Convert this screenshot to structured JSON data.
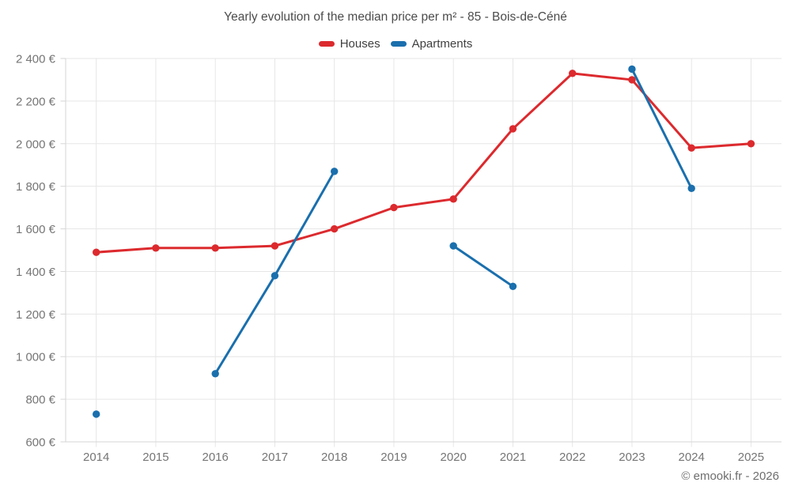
{
  "header": {
    "title": "Yearly evolution of the median price per m² - 85 - Bois-de-Céné"
  },
  "chart_data": {
    "type": "line",
    "title": "Yearly evolution of the median price per m² - 85 - Bois-de-Céné",
    "categories": [
      "2014",
      "2015",
      "2016",
      "2017",
      "2018",
      "2019",
      "2020",
      "2021",
      "2022",
      "2023",
      "2024",
      "2025"
    ],
    "series": [
      {
        "name": "Houses",
        "color": "#dc2a2e",
        "values": [
          1490,
          1510,
          1510,
          1520,
          1600,
          1700,
          1740,
          2070,
          2330,
          2300,
          1980,
          2000
        ]
      },
      {
        "name": "Apartments",
        "color": "#1a6fad",
        "values": [
          730,
          null,
          920,
          1380,
          1870,
          null,
          1520,
          1330,
          null,
          2350,
          1790,
          null
        ]
      }
    ],
    "xlabel": "",
    "ylabel": "",
    "ylim": [
      600,
      2400
    ],
    "ytick_step": 200,
    "ytick_format": "{value} €",
    "grid": true,
    "legend_position": "top",
    "grid_color": "#e6e6e6",
    "axis_line_color": "#d6d6d6",
    "tick_label_color": "#757575"
  },
  "footer": {
    "copyright": "© emooki.fr - 2026"
  }
}
